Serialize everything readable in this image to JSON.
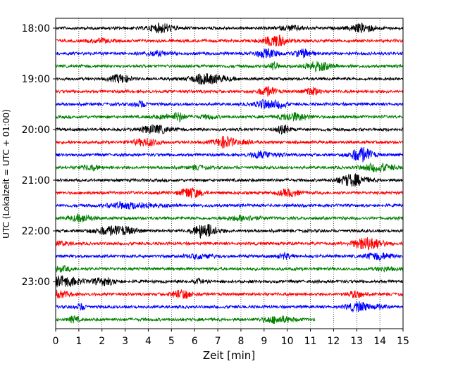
{
  "chart_data": {
    "type": "line",
    "title": "",
    "xlabel": "Zeit  [min]",
    "ylabel": "UTC (Lokalzeit = UTC + 01:00)",
    "xlim": [
      0,
      15
    ],
    "x_ticks": [
      "0",
      "1",
      "2",
      "3",
      "4",
      "5",
      "6",
      "7",
      "8",
      "9",
      "10",
      "11",
      "12",
      "13",
      "14",
      "15"
    ],
    "y_tick_labels": [
      "18:00",
      "19:00",
      "20:00",
      "21:00",
      "22:00",
      "23:00"
    ],
    "grid": "vertical dotted lines at each minute",
    "trace_interval_minutes": 15,
    "color_cycle": [
      "#000000",
      "#ff0000",
      "#0000ff",
      "#008000"
    ],
    "series": [
      {
        "start": "18:00",
        "color": "#000000",
        "end_minute": 15
      },
      {
        "start": "18:15",
        "color": "#ff0000",
        "end_minute": 15
      },
      {
        "start": "18:30",
        "color": "#0000ff",
        "end_minute": 15
      },
      {
        "start": "18:45",
        "color": "#008000",
        "end_minute": 15
      },
      {
        "start": "19:00",
        "color": "#000000",
        "end_minute": 15
      },
      {
        "start": "19:15",
        "color": "#ff0000",
        "end_minute": 15
      },
      {
        "start": "19:30",
        "color": "#0000ff",
        "end_minute": 15
      },
      {
        "start": "19:45",
        "color": "#008000",
        "end_minute": 15
      },
      {
        "start": "20:00",
        "color": "#000000",
        "end_minute": 15
      },
      {
        "start": "20:15",
        "color": "#ff0000",
        "end_minute": 15
      },
      {
        "start": "20:30",
        "color": "#0000ff",
        "end_minute": 15
      },
      {
        "start": "20:45",
        "color": "#008000",
        "end_minute": 15
      },
      {
        "start": "21:00",
        "color": "#000000",
        "end_minute": 15
      },
      {
        "start": "21:15",
        "color": "#ff0000",
        "end_minute": 15
      },
      {
        "start": "21:30",
        "color": "#0000ff",
        "end_minute": 15
      },
      {
        "start": "21:45",
        "color": "#008000",
        "end_minute": 15
      },
      {
        "start": "22:00",
        "color": "#000000",
        "end_minute": 15
      },
      {
        "start": "22:15",
        "color": "#ff0000",
        "end_minute": 15
      },
      {
        "start": "22:30",
        "color": "#0000ff",
        "end_minute": 15
      },
      {
        "start": "22:45",
        "color": "#008000",
        "end_minute": 15
      },
      {
        "start": "23:00",
        "color": "#000000",
        "end_minute": 15
      },
      {
        "start": "23:15",
        "color": "#ff0000",
        "end_minute": 15
      },
      {
        "start": "23:30",
        "color": "#0000ff",
        "end_minute": 15
      },
      {
        "start": "23:45",
        "color": "#008000",
        "end_minute": 11.2
      }
    ]
  }
}
